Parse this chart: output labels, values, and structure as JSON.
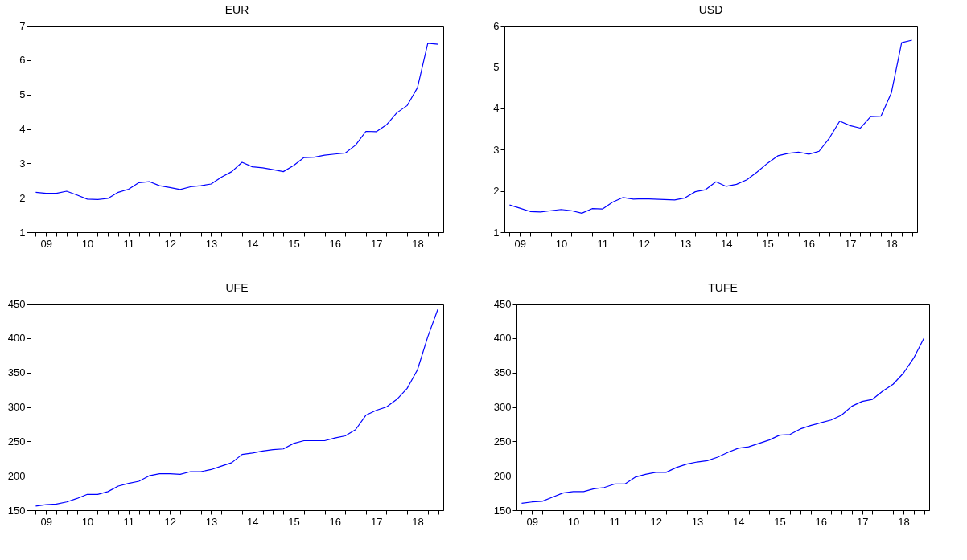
{
  "chart_data": [
    {
      "type": "line",
      "title": "EUR",
      "categories": [
        null,
        "09",
        null,
        null,
        null,
        "10",
        null,
        null,
        null,
        "11",
        null,
        null,
        null,
        "12",
        null,
        null,
        null,
        "13",
        null,
        null,
        null,
        "14",
        null,
        null,
        null,
        "15",
        null,
        null,
        null,
        "16",
        null,
        null,
        null,
        "17",
        null,
        null,
        null,
        "18",
        null,
        null
      ],
      "series": [
        {
          "color": "#0000ff",
          "values": [
            2.16,
            2.13,
            2.13,
            2.19,
            2.08,
            1.96,
            1.95,
            1.98,
            2.16,
            2.25,
            2.44,
            2.47,
            2.35,
            2.3,
            2.24,
            2.32,
            2.35,
            2.4,
            2.6,
            2.76,
            3.03,
            2.9,
            2.87,
            2.82,
            2.76,
            2.94,
            3.17,
            3.18,
            3.24,
            3.27,
            3.3,
            3.53,
            3.93,
            3.92,
            4.12,
            4.47,
            4.68,
            5.2,
            6.49,
            6.46
          ]
        }
      ],
      "ylim": [
        1,
        7
      ],
      "yticks": [
        1,
        2,
        3,
        4,
        5,
        6,
        7
      ],
      "grid": false
    },
    {
      "type": "line",
      "title": "USD",
      "categories": [
        null,
        "09",
        null,
        null,
        null,
        "10",
        null,
        null,
        null,
        "11",
        null,
        null,
        null,
        "12",
        null,
        null,
        null,
        "13",
        null,
        null,
        null,
        "14",
        null,
        null,
        null,
        "15",
        null,
        null,
        null,
        "16",
        null,
        null,
        null,
        "17",
        null,
        null,
        null,
        "18",
        null,
        null
      ],
      "series": [
        {
          "color": "#0000ff",
          "values": [
            1.66,
            1.58,
            1.5,
            1.49,
            1.52,
            1.55,
            1.52,
            1.46,
            1.57,
            1.56,
            1.73,
            1.84,
            1.8,
            1.81,
            1.8,
            1.79,
            1.78,
            1.83,
            1.98,
            2.03,
            2.22,
            2.11,
            2.16,
            2.27,
            2.46,
            2.67,
            2.85,
            2.91,
            2.94,
            2.89,
            2.96,
            3.28,
            3.69,
            3.58,
            3.52,
            3.8,
            3.81,
            4.37,
            5.59,
            5.65
          ]
        }
      ],
      "ylim": [
        1,
        6
      ],
      "yticks": [
        1,
        2,
        3,
        4,
        5,
        6
      ],
      "grid": false
    },
    {
      "type": "line",
      "title": "UFE",
      "categories": [
        null,
        "09",
        null,
        null,
        null,
        "10",
        null,
        null,
        null,
        "11",
        null,
        null,
        null,
        "12",
        null,
        null,
        null,
        "13",
        null,
        null,
        null,
        "14",
        null,
        null,
        null,
        "15",
        null,
        null,
        null,
        "16",
        null,
        null,
        null,
        "17",
        null,
        null,
        null,
        "18",
        null,
        null
      ],
      "series": [
        {
          "color": "#0000ff",
          "values": [
            156,
            158,
            159,
            162,
            167,
            173,
            173,
            177,
            185,
            189,
            192,
            200,
            203,
            203,
            202,
            206,
            206,
            209,
            214,
            219,
            231,
            233,
            236,
            238,
            239,
            247,
            251,
            251,
            251,
            255,
            258,
            267,
            288,
            295,
            300,
            311,
            327,
            354,
            402,
            443
          ]
        }
      ],
      "ylim": [
        150,
        450
      ],
      "yticks": [
        150,
        200,
        250,
        300,
        350,
        400,
        450
      ],
      "grid": false
    },
    {
      "type": "line",
      "title": "TUFE",
      "categories": [
        null,
        "09",
        null,
        null,
        null,
        "10",
        null,
        null,
        null,
        "11",
        null,
        null,
        null,
        "12",
        null,
        null,
        null,
        "13",
        null,
        null,
        null,
        "14",
        null,
        null,
        null,
        "15",
        null,
        null,
        null,
        "16",
        null,
        null,
        null,
        "17",
        null,
        null,
        null,
        "18",
        null,
        null
      ],
      "series": [
        {
          "color": "#0000ff",
          "values": [
            160,
            162,
            163,
            169,
            175,
            177,
            177,
            181,
            183,
            188,
            188,
            198,
            202,
            205,
            205,
            212,
            217,
            220,
            222,
            227,
            234,
            240,
            242,
            247,
            252,
            259,
            260,
            268,
            273,
            277,
            281,
            288,
            301,
            308,
            311,
            323,
            333,
            349,
            371,
            400
          ]
        }
      ],
      "ylim": [
        150,
        450
      ],
      "yticks": [
        150,
        200,
        250,
        300,
        350,
        400,
        450
      ],
      "grid": false
    }
  ]
}
